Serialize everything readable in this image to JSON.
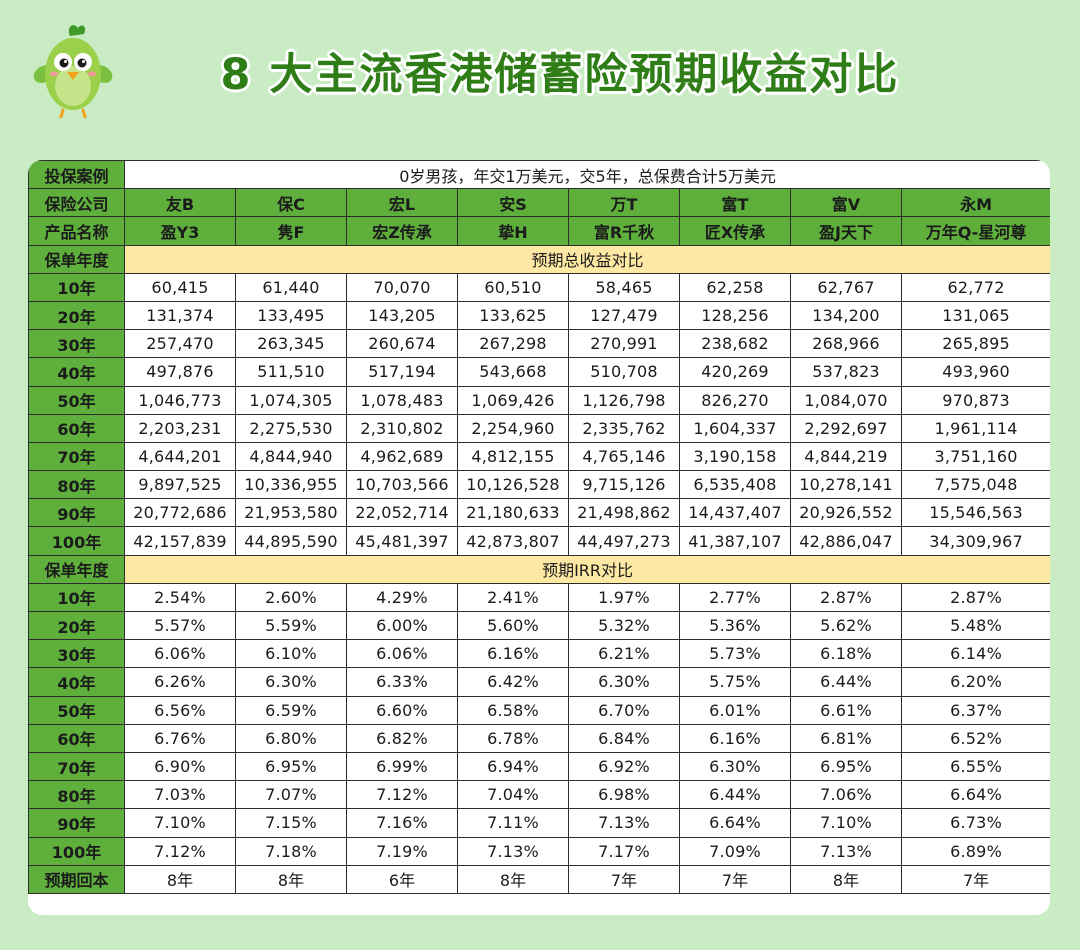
{
  "title": "8 大主流香港储蓄险预期收益对比",
  "mascot": {
    "icon": "green-bird-mascot-icon"
  },
  "colors": {
    "header_green": "#5eaf3c",
    "section_yellow": "#fde9a3",
    "highlight_red": "#e8231f",
    "title_green": "#2f7d17",
    "background": "#c9ecc4"
  },
  "table": {
    "case_label": "投保案例",
    "case_text": "0岁男孩，年交1万美元，交5年，总保费合计5万美元",
    "company_label": "保险公司",
    "companies": [
      "友B",
      "保C",
      "宏L",
      "安S",
      "万T",
      "富T",
      "富V",
      "永M"
    ],
    "product_label": "产品名称",
    "products": [
      "盈Y3",
      "隽F",
      "宏Z传承",
      "挚H",
      "富R千秋",
      "匠X传承",
      "盈J天下",
      "万年Q-星河尊"
    ],
    "year_label": "保单年度",
    "total_section_title": "预期总收益对比",
    "total_rows": [
      {
        "year": "10年",
        "values": [
          "60,415",
          "61,440",
          "70,070",
          "60,510",
          "58,465",
          "62,258",
          "62,767",
          "62,772"
        ],
        "highlight": [
          2
        ]
      },
      {
        "year": "20年",
        "values": [
          "131,374",
          "133,495",
          "143,205",
          "133,625",
          "127,479",
          "128,256",
          "134,200",
          "131,065"
        ],
        "highlight": [
          2
        ]
      },
      {
        "year": "30年",
        "values": [
          "257,470",
          "263,345",
          "260,674",
          "267,298",
          "270,991",
          "238,682",
          "268,966",
          "265,895"
        ],
        "highlight": [
          4
        ]
      },
      {
        "year": "40年",
        "values": [
          "497,876",
          "511,510",
          "517,194",
          "543,668",
          "510,708",
          "420,269",
          "537,823",
          "493,960"
        ],
        "highlight": [
          3,
          6
        ]
      },
      {
        "year": "50年",
        "values": [
          "1,046,773",
          "1,074,305",
          "1,078,483",
          "1,069,426",
          "1,126,798",
          "826,270",
          "1,084,070",
          "970,873"
        ],
        "highlight": [
          4
        ]
      },
      {
        "year": "60年",
        "values": [
          "2,203,231",
          "2,275,530",
          "2,310,802",
          "2,254,960",
          "2,335,762",
          "1,604,337",
          "2,292,697",
          "1,961,114"
        ],
        "highlight": [
          4
        ]
      },
      {
        "year": "70年",
        "values": [
          "4,644,201",
          "4,844,940",
          "4,962,689",
          "4,812,155",
          "4,765,146",
          "3,190,158",
          "4,844,219",
          "3,751,160"
        ],
        "highlight": [
          2
        ]
      },
      {
        "year": "80年",
        "values": [
          "9,897,525",
          "10,336,955",
          "10,703,566",
          "10,126,528",
          "9,715,126",
          "6,535,408",
          "10,278,141",
          "7,575,048"
        ],
        "highlight": [
          2
        ]
      },
      {
        "year": "90年",
        "values": [
          "20,772,686",
          "21,953,580",
          "22,052,714",
          "21,180,633",
          "21,498,862",
          "14,437,407",
          "20,926,552",
          "15,546,563"
        ],
        "highlight": [
          2
        ]
      },
      {
        "year": "100年",
        "values": [
          "42,157,839",
          "44,895,590",
          "45,481,397",
          "42,873,807",
          "44,497,273",
          "41,387,107",
          "42,886,047",
          "34,309,967"
        ],
        "highlight": [
          2
        ]
      }
    ],
    "irr_section_title": "预期IRR对比",
    "irr_rows": [
      {
        "year": "10年",
        "values": [
          "2.54%",
          "2.60%",
          "4.29%",
          "2.41%",
          "1.97%",
          "2.77%",
          "2.87%",
          "2.87%"
        ],
        "highlight": [
          2
        ]
      },
      {
        "year": "20年",
        "values": [
          "5.57%",
          "5.59%",
          "6.00%",
          "5.60%",
          "5.32%",
          "5.36%",
          "5.62%",
          "5.48%"
        ],
        "highlight": [
          2
        ]
      },
      {
        "year": "30年",
        "values": [
          "6.06%",
          "6.10%",
          "6.06%",
          "6.16%",
          "6.21%",
          "5.73%",
          "6.18%",
          "6.14%"
        ],
        "highlight": [
          4
        ]
      },
      {
        "year": "40年",
        "values": [
          "6.26%",
          "6.30%",
          "6.33%",
          "6.42%",
          "6.30%",
          "5.75%",
          "6.44%",
          "6.20%"
        ],
        "highlight": [
          6
        ]
      },
      {
        "year": "50年",
        "values": [
          "6.56%",
          "6.59%",
          "6.60%",
          "6.58%",
          "6.70%",
          "6.01%",
          "6.61%",
          "6.37%"
        ],
        "highlight": [
          4
        ]
      },
      {
        "year": "60年",
        "values": [
          "6.76%",
          "6.80%",
          "6.82%",
          "6.78%",
          "6.84%",
          "6.16%",
          "6.81%",
          "6.52%"
        ],
        "highlight": [
          4
        ]
      },
      {
        "year": "70年",
        "values": [
          "6.90%",
          "6.95%",
          "6.99%",
          "6.94%",
          "6.92%",
          "6.30%",
          "6.95%",
          "6.55%"
        ],
        "highlight": [
          2
        ]
      },
      {
        "year": "80年",
        "values": [
          "7.03%",
          "7.07%",
          "7.12%",
          "7.04%",
          "6.98%",
          "6.44%",
          "7.06%",
          "6.64%"
        ],
        "highlight": [
          2
        ]
      },
      {
        "year": "90年",
        "values": [
          "7.10%",
          "7.15%",
          "7.16%",
          "7.11%",
          "7.13%",
          "6.64%",
          "7.10%",
          "6.73%"
        ],
        "highlight": [
          2
        ]
      },
      {
        "year": "100年",
        "values": [
          "7.12%",
          "7.18%",
          "7.19%",
          "7.13%",
          "7.17%",
          "7.09%",
          "7.13%",
          "6.89%"
        ],
        "highlight": [
          2
        ]
      }
    ],
    "payback_label": "预期回本",
    "payback": {
      "values": [
        "8年",
        "8年",
        "6年",
        "8年",
        "7年",
        "7年",
        "8年",
        "7年"
      ],
      "highlight": [
        2
      ]
    }
  }
}
